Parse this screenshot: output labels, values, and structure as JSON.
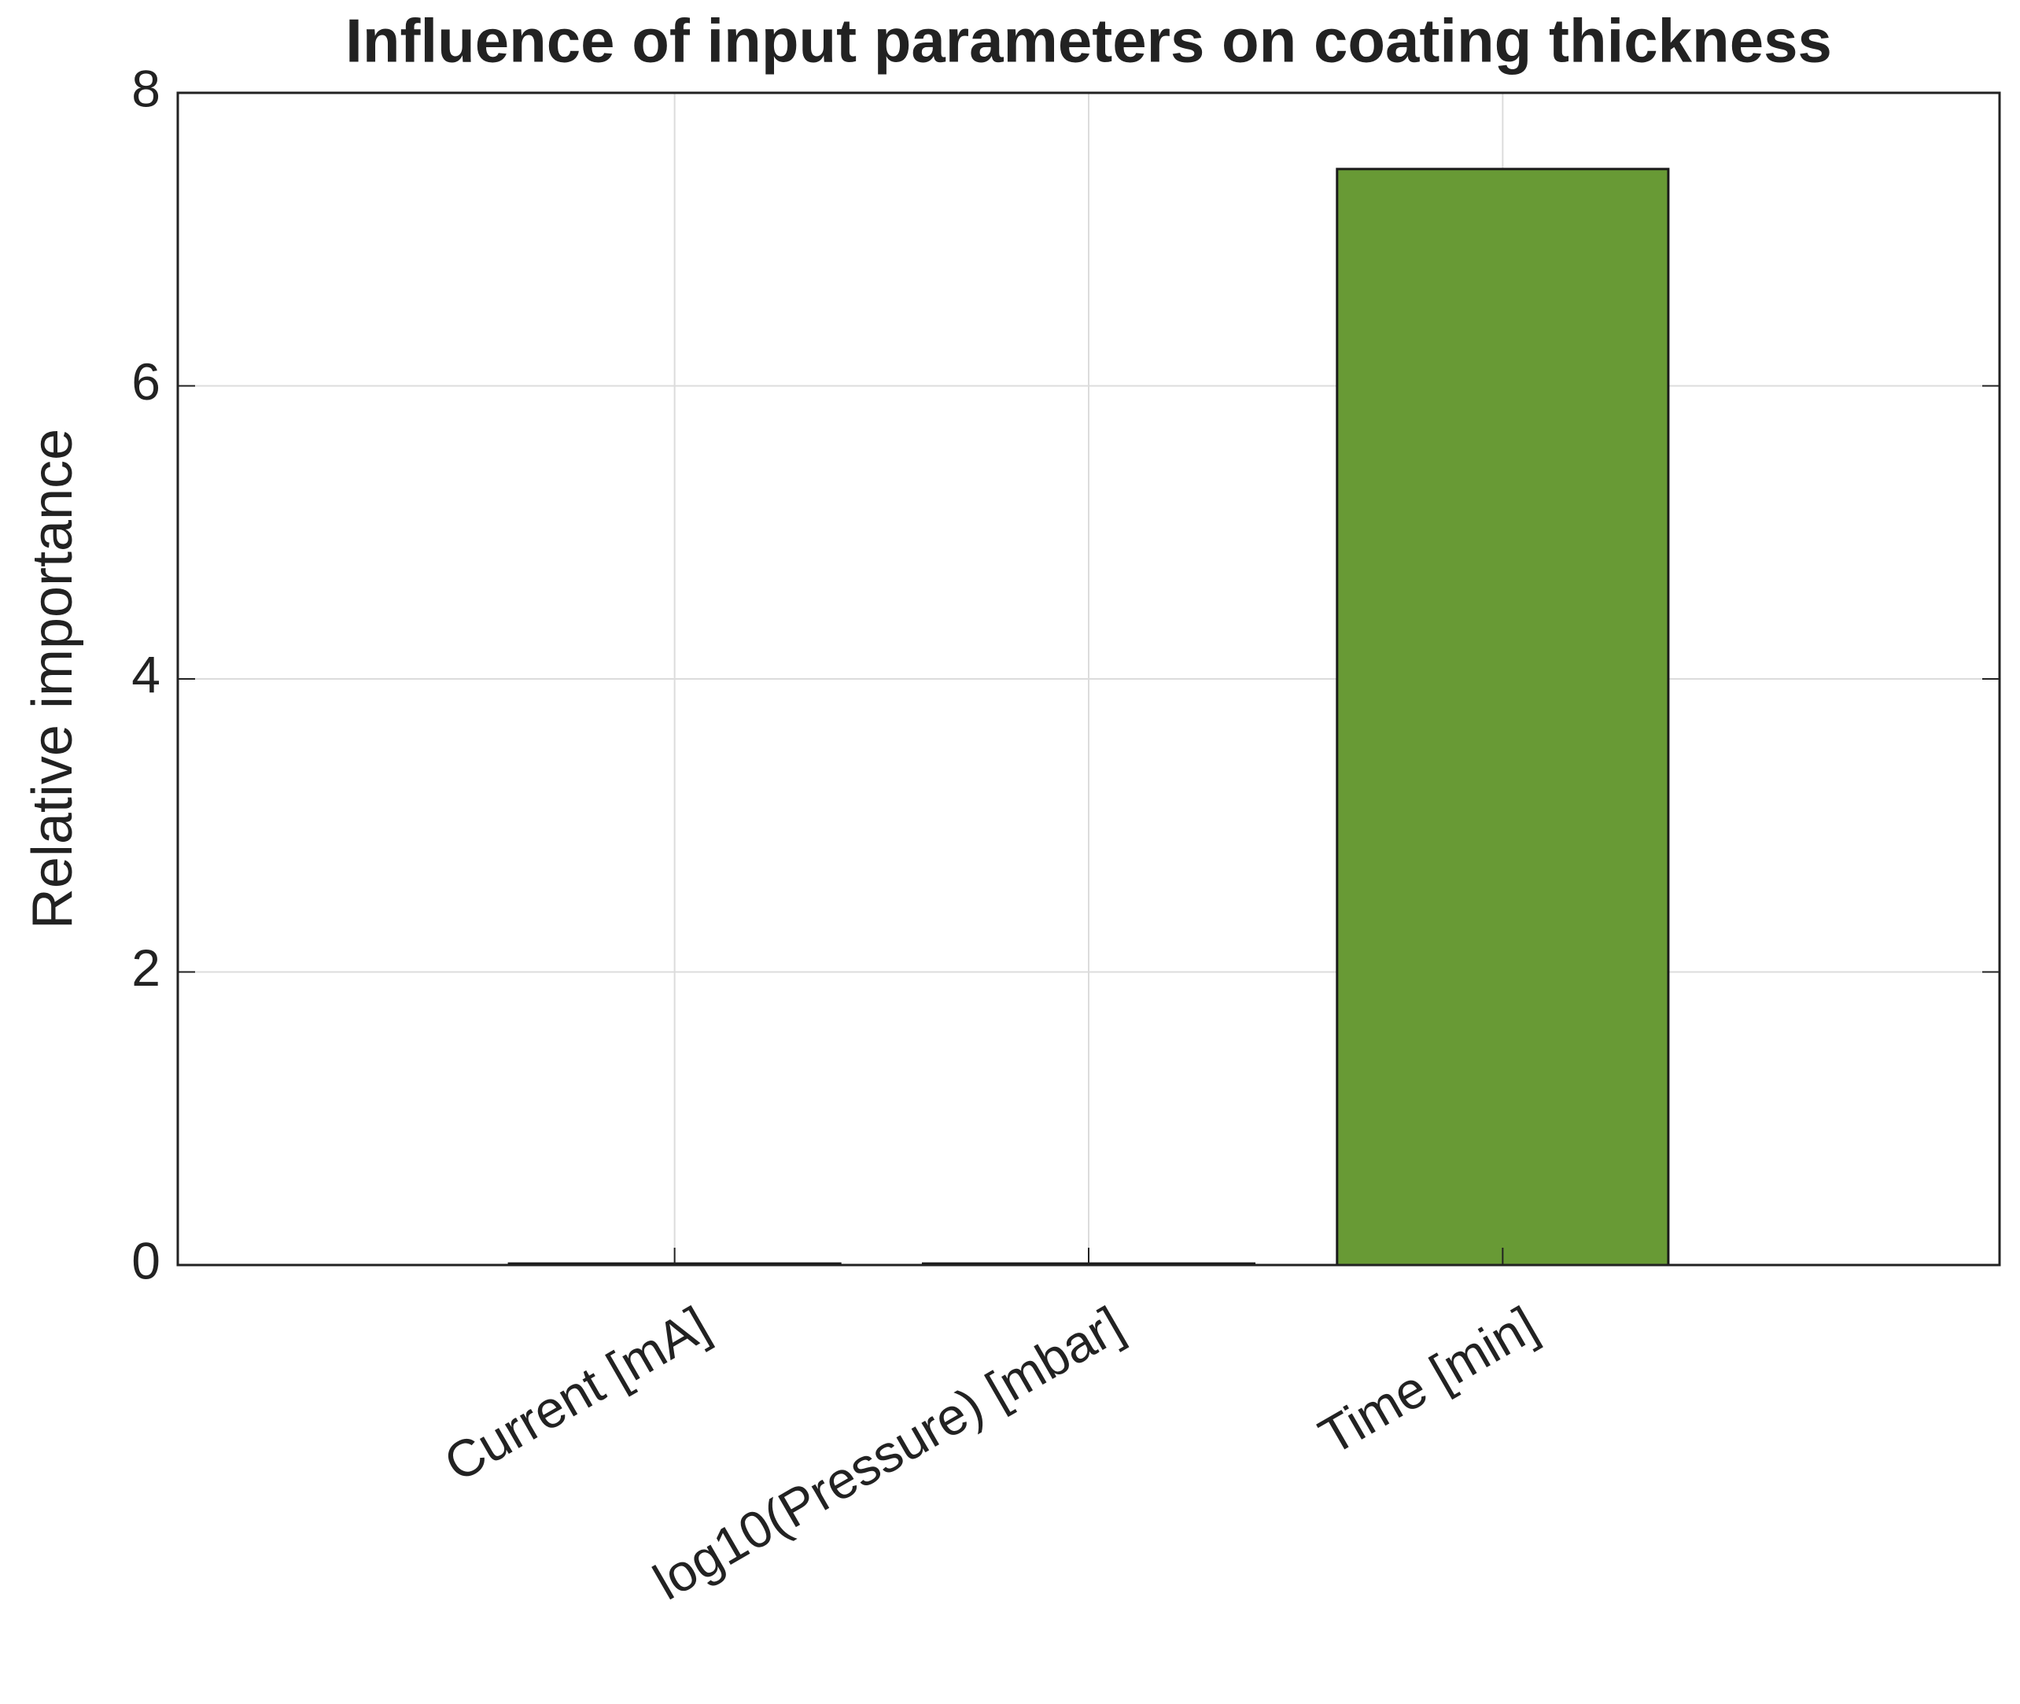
{
  "chart_data": {
    "type": "bar",
    "title": "Influence of input parameters on coating thickness",
    "y_label": "Relative importance",
    "categories": [
      "Current [mA]",
      "log10(Pressure) [mbar]",
      "Time [min]"
    ],
    "values": [
      0.01,
      0.01,
      7.48
    ],
    "color": "#689a35",
    "ylim": [
      0,
      8
    ],
    "yticks": [
      0,
      2,
      4,
      6,
      8
    ],
    "grid": true
  }
}
